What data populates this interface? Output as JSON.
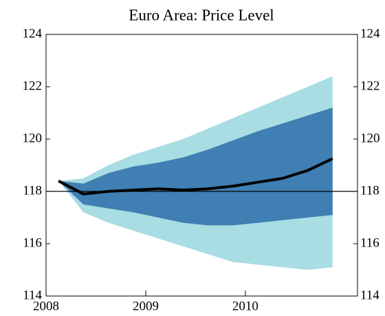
{
  "chart_data": {
    "type": "fan",
    "title": "Euro Area: Price Level",
    "x": [
      2008.125,
      2008.375,
      2008.625,
      2008.875,
      2009.125,
      2009.375,
      2009.625,
      2009.875,
      2010.125,
      2010.375,
      2010.625,
      2010.875
    ],
    "bands": [
      {
        "color": "#a8dde3",
        "upper": [
          118.4,
          118.5,
          119.0,
          119.4,
          119.7,
          120.0,
          120.4,
          120.8,
          121.2,
          121.6,
          122.0,
          122.4
        ],
        "lower": [
          118.4,
          117.2,
          116.8,
          116.5,
          116.2,
          115.9,
          115.6,
          115.3,
          115.2,
          115.1,
          115.0,
          115.1
        ]
      },
      {
        "color": "#3f7fb3",
        "upper": [
          118.4,
          118.3,
          118.7,
          118.95,
          119.1,
          119.3,
          119.6,
          119.95,
          120.3,
          120.6,
          120.9,
          121.2
        ],
        "lower": [
          118.4,
          117.5,
          117.35,
          117.2,
          117.0,
          116.8,
          116.7,
          116.7,
          116.8,
          116.9,
          117.0,
          117.1
        ]
      }
    ],
    "series": [
      {
        "color": "#000000",
        "values": [
          118.4,
          117.9,
          118.0,
          118.05,
          118.1,
          118.05,
          118.1,
          118.2,
          118.35,
          118.5,
          118.8,
          119.25
        ]
      }
    ],
    "reference_line": 118,
    "xlim": [
      2008,
      2011.125
    ],
    "xticks": [
      2008,
      2009,
      2010
    ],
    "ylim": [
      114,
      124
    ],
    "yticks": [
      114,
      116,
      118,
      120,
      122,
      124
    ]
  }
}
